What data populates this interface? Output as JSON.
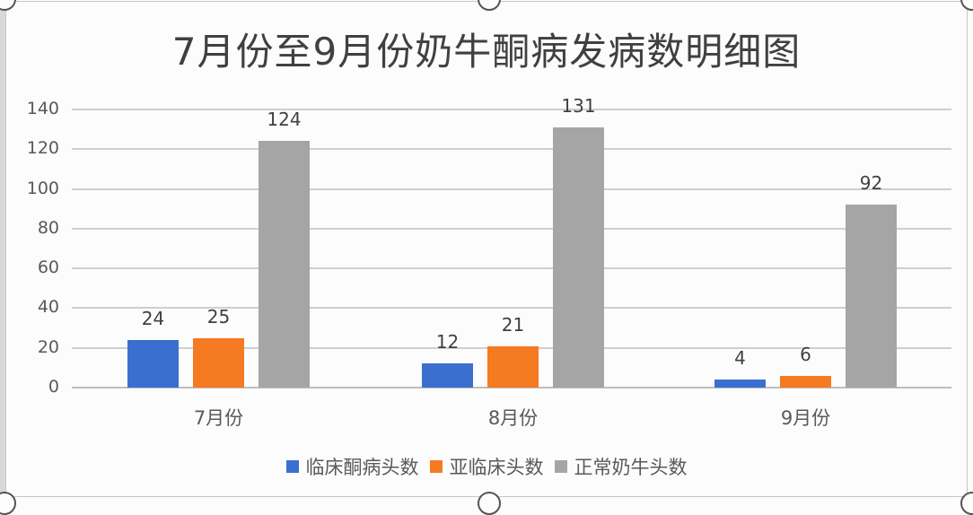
{
  "chart_data": {
    "type": "bar",
    "title": "7月份至9月份奶牛酮病发病数明细图",
    "categories": [
      "7月份",
      "8月份",
      "9月份"
    ],
    "series": [
      {
        "name": "临床酮病头数",
        "color": "#3a6fcf",
        "values": [
          24,
          12,
          4
        ]
      },
      {
        "name": "亚临床头数",
        "color": "#f57a22",
        "values": [
          25,
          21,
          6
        ]
      },
      {
        "name": "正常奶牛头数",
        "color": "#a5a5a5",
        "values": [
          124,
          131,
          92
        ]
      }
    ],
    "xlabel": "",
    "ylabel": "",
    "ylim": [
      0,
      140
    ],
    "yticks": [
      0,
      20,
      40,
      60,
      80,
      100,
      120,
      140
    ],
    "grid": true,
    "legend_position": "bottom",
    "data_labels": true
  }
}
